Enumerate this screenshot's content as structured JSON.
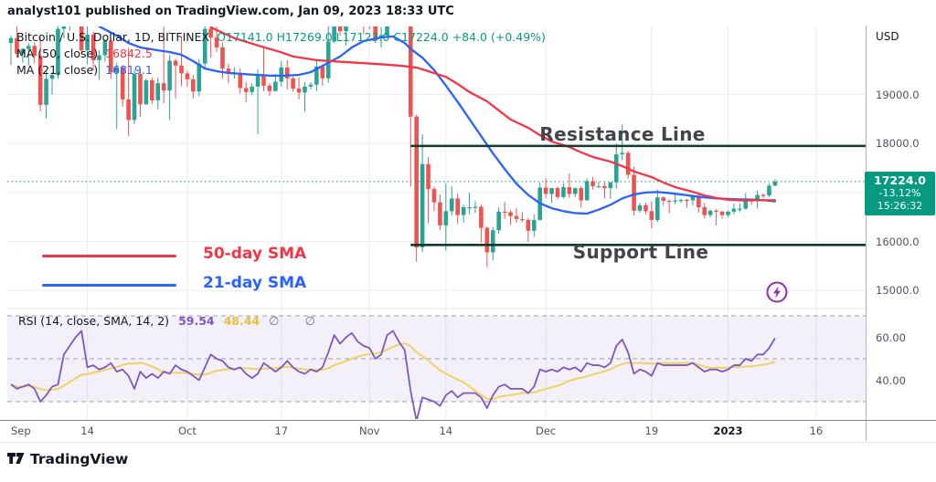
{
  "header": {
    "published_line": "analyst101 published on TradingView.com, Jan 09, 2023 18:33 UTC"
  },
  "legend": {
    "symbol_line": "Bitcoin / U.S. Dollar, 1D, BITFINEX",
    "ohlc_summary": "O17141.0  H17269.0  L17123.0  C17224.0  +84.0 (+0.49%)",
    "ma50_label": "MA (50, close)",
    "ma50_value": "16842.5",
    "ma21_label": "MA (21, close)",
    "ma21_value": "16819.1"
  },
  "annotations": {
    "resistance_label": "Resistance Line",
    "support_label": "Support Line",
    "sma50_legend": "50-day SMA",
    "sma21_legend": "21-day SMA"
  },
  "rsi": {
    "label": "RSI (14, close, SMA, 14, 2)",
    "value": "59.54",
    "ma_value": "48.44",
    "empty_values": "∅ ∅"
  },
  "axis": {
    "unit": "USD",
    "badge_price": "17224.0",
    "badge_change": "-13.12%",
    "badge_countdown": "15:26:32"
  },
  "footer": {
    "brand": "TradingView"
  },
  "colors": {
    "up": "#2AA394",
    "down": "#EF5350",
    "ma50": "#F23645",
    "ma21": "#2962FF",
    "rsi_line": "#7E57C2",
    "rsi_ma_line": "#F0D264",
    "rsi_band_fill": "rgba(126,87,194,0.09)",
    "rsi_dash": "#9DA0AC",
    "trend_line": "#123A2D",
    "last_price_line": "#089981",
    "badge_bg": "#089981",
    "grid": "#EAEDF4",
    "flash_icon": "#9C27B0"
  },
  "chart_data": {
    "type": "candlestick",
    "title": "Bitcoin / U.S. Dollar, 1D, BITFINEX",
    "timeframe": "1D",
    "last_price": 17224.0,
    "price_axis": {
      "ticks": [
        {
          "label": "19000.0",
          "price": 19000
        },
        {
          "label": "18000.0",
          "price": 18000
        },
        {
          "label": "16000.0",
          "price": 16000
        },
        {
          "label": "15000.0",
          "price": 15000
        }
      ],
      "gridline_prices": [
        19000,
        18000,
        17000,
        16000,
        15000
      ],
      "unit": "USD"
    },
    "time_ticks": [
      {
        "label": "Sep",
        "day": 0
      },
      {
        "label": "14",
        "day": 13
      },
      {
        "label": "Oct",
        "day": 30
      },
      {
        "label": "17",
        "day": 46
      },
      {
        "label": "Nov",
        "day": 61
      },
      {
        "label": "14",
        "day": 74
      },
      {
        "label": "Dec",
        "day": 91
      },
      {
        "label": "19",
        "day": 109
      },
      {
        "label": "2023",
        "day": 122,
        "bold": true
      },
      {
        "label": "16",
        "day": 137
      }
    ],
    "levels": {
      "resistance": 17950,
      "support": 15930,
      "lines_start_day": 68
    },
    "candles_ohlc": [
      [
        20050,
        20200,
        19600,
        20150
      ],
      [
        20150,
        20450,
        19750,
        19830
      ],
      [
        19830,
        19950,
        19650,
        19930
      ],
      [
        19930,
        20050,
        19590,
        19990
      ],
      [
        19990,
        20060,
        19640,
        19790
      ],
      [
        19790,
        20180,
        18660,
        18790
      ],
      [
        18790,
        19480,
        18510,
        19320
      ],
      [
        19320,
        19450,
        19000,
        19400
      ],
      [
        19400,
        20420,
        19320,
        20340
      ],
      [
        20340,
        20550,
        20150,
        20480
      ],
      [
        20480,
        21600,
        20300,
        21380
      ],
      [
        21380,
        22450,
        21200,
        22300
      ],
      [
        22300,
        22500,
        19810,
        19900
      ],
      [
        19900,
        20550,
        19620,
        20220
      ],
      [
        20220,
        20280,
        19500,
        19700
      ],
      [
        19700,
        19900,
        19300,
        19800
      ],
      [
        19800,
        20120,
        19670,
        20100
      ],
      [
        20100,
        20120,
        19320,
        19450
      ],
      [
        19450,
        19650,
        18300,
        19550
      ],
      [
        19550,
        19600,
        18750,
        18900
      ],
      [
        18900,
        19950,
        18150,
        18480
      ],
      [
        18480,
        19500,
        18400,
        19420
      ],
      [
        19420,
        19480,
        18540,
        18800
      ],
      [
        18800,
        19320,
        18790,
        19290
      ],
      [
        19290,
        19350,
        18800,
        18880
      ],
      [
        18880,
        19350,
        18700,
        19230
      ],
      [
        19230,
        20380,
        18820,
        19080
      ],
      [
        19080,
        19800,
        18480,
        19690
      ],
      [
        19690,
        19720,
        18920,
        19590
      ],
      [
        19590,
        20180,
        19170,
        19430
      ],
      [
        19430,
        19490,
        19160,
        19310
      ],
      [
        19310,
        19400,
        18920,
        19060
      ],
      [
        19060,
        19720,
        18960,
        19630
      ],
      [
        19630,
        20480,
        19500,
        20340
      ],
      [
        20340,
        20360,
        19750,
        20160
      ],
      [
        20160,
        20460,
        19870,
        19960
      ],
      [
        19960,
        20060,
        19320,
        19530
      ],
      [
        19530,
        19630,
        19230,
        19420
      ],
      [
        19420,
        19560,
        19320,
        19440
      ],
      [
        19440,
        19530,
        19020,
        19130
      ],
      [
        19130,
        19260,
        18850,
        19050
      ],
      [
        19050,
        19230,
        18980,
        19160
      ],
      [
        19160,
        19510,
        18190,
        19380
      ],
      [
        19380,
        19950,
        19070,
        19180
      ],
      [
        19180,
        19230,
        18970,
        19070
      ],
      [
        19070,
        19420,
        19060,
        19260
      ],
      [
        19260,
        19680,
        19160,
        19550
      ],
      [
        19550,
        19700,
        19100,
        19330
      ],
      [
        19330,
        19360,
        19060,
        19120
      ],
      [
        19120,
        19350,
        18900,
        19040
      ],
      [
        19040,
        19250,
        18650,
        19160
      ],
      [
        19160,
        19250,
        19100,
        19200
      ],
      [
        19200,
        19690,
        19070,
        19570
      ],
      [
        19570,
        19600,
        19180,
        19330
      ],
      [
        19330,
        20440,
        19240,
        20080
      ],
      [
        20080,
        21020,
        20050,
        20770
      ],
      [
        20770,
        20870,
        20200,
        20290
      ],
      [
        20290,
        21080,
        20000,
        20600
      ],
      [
        20600,
        21060,
        20520,
        20810
      ],
      [
        20810,
        20930,
        20380,
        20630
      ],
      [
        20630,
        20800,
        20230,
        20490
      ],
      [
        20490,
        20700,
        20330,
        20480
      ],
      [
        20480,
        20800,
        20050,
        20150
      ],
      [
        20150,
        20380,
        19960,
        20210
      ],
      [
        20210,
        21480,
        20190,
        21150
      ],
      [
        21150,
        21480,
        21080,
        21300
      ],
      [
        21300,
        21360,
        20890,
        20920
      ],
      [
        20920,
        21070,
        20430,
        20600
      ],
      [
        20600,
        20700,
        17120,
        18550
      ],
      [
        18550,
        18590,
        15590,
        15880
      ],
      [
        15880,
        18190,
        15780,
        17580
      ],
      [
        17580,
        17720,
        16370,
        17070
      ],
      [
        17070,
        17120,
        16620,
        16800
      ],
      [
        16800,
        16960,
        16230,
        16330
      ],
      [
        16330,
        17190,
        15815,
        16620
      ],
      [
        16620,
        17130,
        16530,
        16880
      ],
      [
        16880,
        16980,
        16360,
        16540
      ],
      [
        16540,
        16750,
        16390,
        16700
      ],
      [
        16700,
        17000,
        16550,
        16700
      ],
      [
        16700,
        16820,
        16580,
        16710
      ],
      [
        16710,
        16750,
        15980,
        16280
      ],
      [
        16280,
        16310,
        15480,
        15780
      ],
      [
        15780,
        16290,
        15620,
        16230
      ],
      [
        16230,
        16700,
        16160,
        16610
      ],
      [
        16610,
        16810,
        16460,
        16600
      ],
      [
        16600,
        16640,
        16340,
        16520
      ],
      [
        16520,
        16690,
        16380,
        16460
      ],
      [
        16460,
        16600,
        16400,
        16440
      ],
      [
        16440,
        16480,
        15990,
        16220
      ],
      [
        16220,
        16550,
        16100,
        16440
      ],
      [
        16440,
        17200,
        16430,
        17100
      ],
      [
        17100,
        17290,
        16880,
        16970
      ],
      [
        16970,
        17090,
        16790,
        17090
      ],
      [
        17090,
        17120,
        16860,
        16910
      ],
      [
        16910,
        17190,
        16880,
        17110
      ],
      [
        17110,
        17390,
        16890,
        16970
      ],
      [
        16970,
        17100,
        16910,
        17090
      ],
      [
        17090,
        17130,
        16690,
        16840
      ],
      [
        16840,
        17290,
        16840,
        17230
      ],
      [
        17230,
        17320,
        17060,
        17130
      ],
      [
        17130,
        17220,
        17100,
        17130
      ],
      [
        17130,
        17230,
        16880,
        17090
      ],
      [
        17090,
        17210,
        16870,
        17210
      ],
      [
        17210,
        18000,
        17080,
        17780
      ],
      [
        17780,
        18390,
        17660,
        17810
      ],
      [
        17810,
        17850,
        17280,
        17360
      ],
      [
        17360,
        17530,
        16530,
        16630
      ],
      [
        16630,
        16790,
        16590,
        16740
      ],
      [
        16740,
        16790,
        16560,
        16620
      ],
      [
        16620,
        16820,
        16270,
        16440
      ],
      [
        16440,
        17060,
        16400,
        16900
      ],
      [
        16900,
        16920,
        16730,
        16830
      ],
      [
        16830,
        16860,
        16580,
        16820
      ],
      [
        16820,
        16950,
        16760,
        16840
      ],
      [
        16840,
        16870,
        16790,
        16850
      ],
      [
        16850,
        16870,
        16690,
        16840
      ],
      [
        16840,
        16940,
        16740,
        16920
      ],
      [
        16920,
        16980,
        16590,
        16700
      ],
      [
        16700,
        16790,
        16470,
        16540
      ],
      [
        16540,
        16650,
        16490,
        16630
      ],
      [
        16630,
        16660,
        16330,
        16610
      ],
      [
        16610,
        16630,
        16470,
        16540
      ],
      [
        16540,
        16630,
        16500,
        16610
      ],
      [
        16610,
        16770,
        16550,
        16670
      ],
      [
        16670,
        16780,
        16600,
        16670
      ],
      [
        16670,
        16990,
        16650,
        16860
      ],
      [
        16860,
        16880,
        16750,
        16830
      ],
      [
        16830,
        17040,
        16680,
        16950
      ],
      [
        16950,
        16980,
        16890,
        16940
      ],
      [
        16940,
        17180,
        16910,
        17140
      ],
      [
        17141,
        17269,
        17123,
        17224
      ]
    ],
    "sma50": [
      [
        34,
        20370
      ],
      [
        38,
        20150
      ],
      [
        42,
        20000
      ],
      [
        46,
        19860
      ],
      [
        48,
        19775
      ],
      [
        52,
        19700
      ],
      [
        57,
        19660
      ],
      [
        62,
        19625
      ],
      [
        66,
        19590
      ],
      [
        69,
        19550
      ],
      [
        71,
        19475
      ],
      [
        74,
        19360
      ],
      [
        76,
        19215
      ],
      [
        78,
        19050
      ],
      [
        81,
        18860
      ],
      [
        83,
        18675
      ],
      [
        85,
        18490
      ],
      [
        88,
        18320
      ],
      [
        90,
        18170
      ],
      [
        92,
        18040
      ],
      [
        95,
        17930
      ],
      [
        97,
        17820
      ],
      [
        99,
        17725
      ],
      [
        102,
        17630
      ],
      [
        104,
        17540
      ],
      [
        106,
        17430
      ],
      [
        109,
        17315
      ],
      [
        111,
        17205
      ],
      [
        113,
        17110
      ],
      [
        116,
        17015
      ],
      [
        118,
        16940
      ],
      [
        120,
        16890
      ],
      [
        122,
        16855
      ],
      [
        125,
        16835
      ],
      [
        127,
        16845
      ],
      [
        130,
        16842.5
      ]
    ],
    "sma21": [
      [
        15,
        20390
      ],
      [
        18,
        20200
      ],
      [
        20,
        20050
      ],
      [
        22,
        19960
      ],
      [
        25,
        19900
      ],
      [
        27,
        19865
      ],
      [
        29,
        19810
      ],
      [
        31,
        19680
      ],
      [
        33,
        19530
      ],
      [
        35,
        19475
      ],
      [
        37,
        19440
      ],
      [
        41,
        19405
      ],
      [
        44,
        19385
      ],
      [
        46,
        19382
      ],
      [
        49,
        19400
      ],
      [
        51,
        19455
      ],
      [
        53,
        19585
      ],
      [
        56,
        19775
      ],
      [
        58,
        19960
      ],
      [
        60,
        20090
      ],
      [
        63,
        20165
      ],
      [
        65,
        20185
      ],
      [
        67,
        20050
      ],
      [
        68,
        19930
      ],
      [
        70,
        19750
      ],
      [
        72,
        19500
      ],
      [
        74,
        19180
      ],
      [
        76,
        18850
      ],
      [
        78,
        18500
      ],
      [
        80,
        18150
      ],
      [
        82,
        17800
      ],
      [
        84,
        17480
      ],
      [
        86,
        17180
      ],
      [
        88,
        16950
      ],
      [
        90,
        16780
      ],
      [
        92,
        16680
      ],
      [
        94,
        16620
      ],
      [
        96,
        16580
      ],
      [
        98,
        16570
      ],
      [
        100,
        16650
      ],
      [
        102,
        16750
      ],
      [
        104,
        16880
      ],
      [
        106,
        16960
      ],
      [
        108,
        17000
      ],
      [
        110,
        17010
      ],
      [
        112,
        16990
      ],
      [
        114,
        16960
      ],
      [
        116,
        16930
      ],
      [
        118,
        16900
      ],
      [
        120,
        16880
      ],
      [
        122,
        16870
      ],
      [
        124,
        16860
      ],
      [
        126,
        16855
      ],
      [
        128,
        16845
      ],
      [
        130,
        16819.1
      ]
    ],
    "rsi14": [
      38,
      36,
      37,
      38,
      36,
      30,
      33,
      37,
      38,
      52,
      56,
      60,
      63,
      46,
      47,
      45,
      46,
      48,
      44,
      45,
      42,
      36,
      44,
      41,
      43,
      41,
      44,
      43,
      47,
      45,
      44,
      42,
      40,
      46,
      52,
      50,
      49,
      46,
      45,
      46,
      43,
      41,
      43,
      48,
      46,
      44,
      46,
      49,
      46,
      44,
      43,
      45,
      44,
      46,
      53,
      61,
      57,
      60,
      62,
      58,
      56,
      55,
      50,
      52,
      61,
      63,
      58,
      54,
      35,
      21,
      32,
      31,
      30,
      28,
      33,
      35,
      32,
      34,
      34,
      34,
      32,
      27,
      33,
      37,
      38,
      36,
      36,
      36,
      34,
      37,
      45,
      44,
      45,
      44,
      46,
      45,
      46,
      44,
      48,
      47,
      47,
      46,
      48,
      56,
      59,
      53,
      43,
      45,
      44,
      42,
      48,
      47,
      47,
      47,
      47,
      47,
      48,
      46,
      44,
      45,
      45,
      44,
      45,
      47,
      47,
      50,
      49,
      52,
      52,
      55,
      59.54
    ],
    "rsi_ma_period": 14,
    "rsi_axis": {
      "band": [
        30,
        70
      ],
      "mid": 50,
      "ticks": [
        {
          "label": "60.00",
          "value": 60
        },
        {
          "label": "40.00",
          "value": 40
        }
      ]
    }
  }
}
